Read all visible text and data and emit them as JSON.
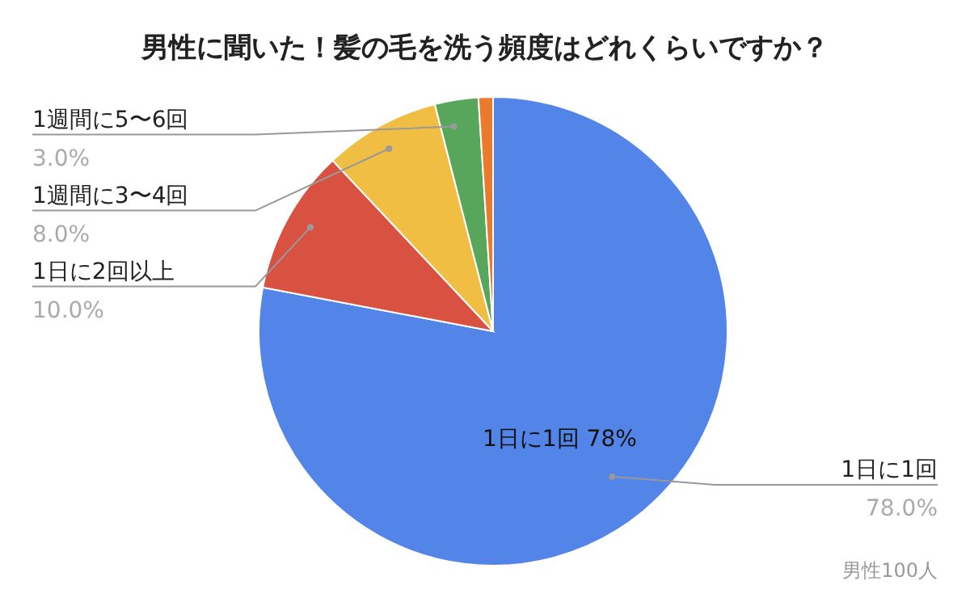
{
  "chart_data": {
    "type": "pie",
    "title": "男性に聞いた！髪の毛を洗う頻度はどれくらいですか？",
    "categories": [
      "1日に1回",
      "1日に2回以上",
      "1週間に3〜4回",
      "1週間に5〜6回",
      null
    ],
    "values": [
      78,
      10,
      8,
      3,
      1
    ],
    "colors": [
      "#5384e8",
      "#d95140",
      "#efbe42",
      "#57a65b",
      "#ec7a2c"
    ],
    "value_labels": [
      "78.0%",
      "10.0%",
      "8.0%",
      "3.0%",
      null
    ],
    "annotations": [
      "1日に1回 78%",
      "男性100人"
    ],
    "legend": false
  }
}
